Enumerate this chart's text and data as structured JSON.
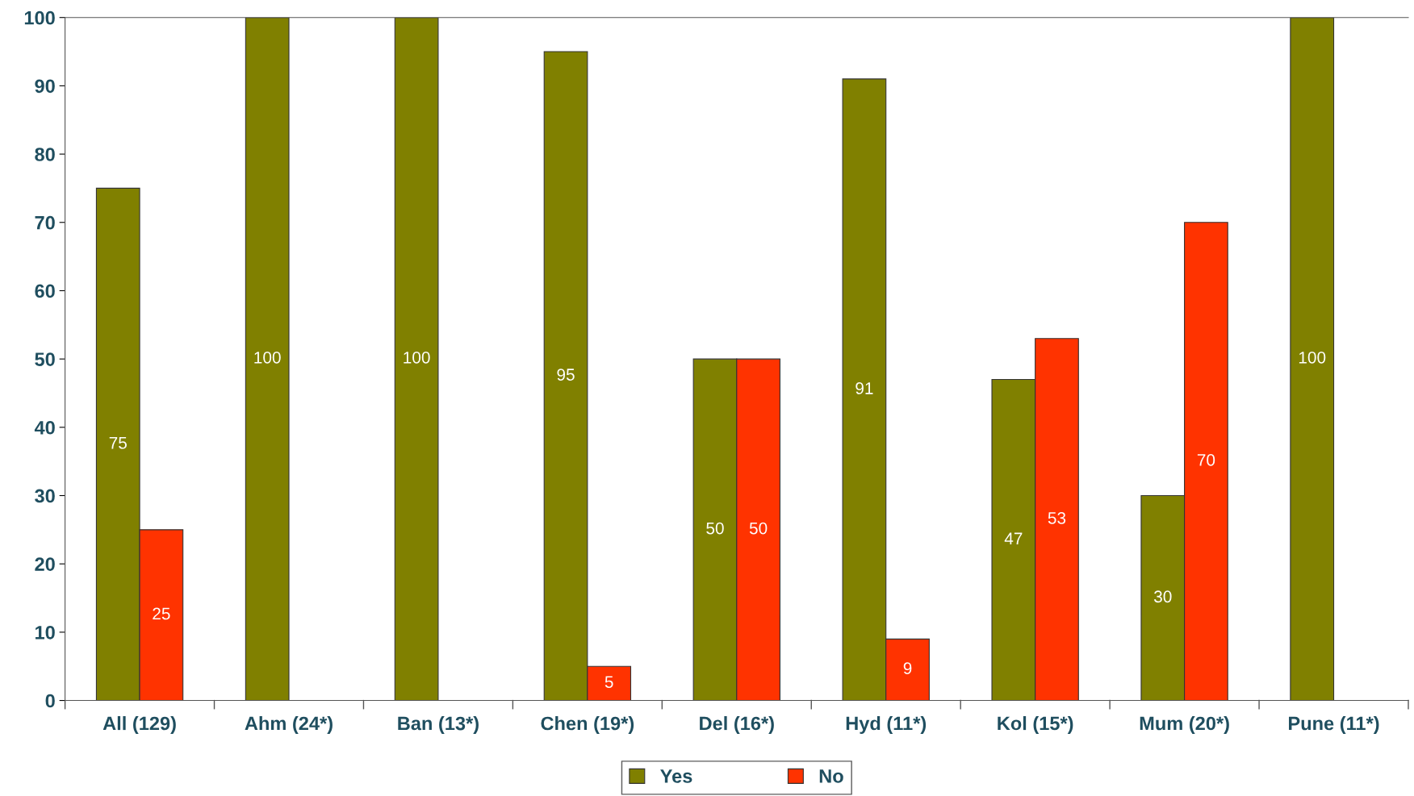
{
  "chart_data": {
    "type": "bar",
    "categories": [
      "All (129)",
      "Ahm (24*)",
      "Ban (13*)",
      "Chen (19*)",
      "Del (16*)",
      "Hyd (11*)",
      "Kol (15*)",
      "Mum (20*)",
      "Pune (11*)"
    ],
    "series": [
      {
        "name": "Yes",
        "color": "#808000",
        "values": [
          75,
          100,
          100,
          95,
          50,
          91,
          47,
          30,
          100
        ]
      },
      {
        "name": "No",
        "color": "#ff3300",
        "values": [
          25,
          null,
          null,
          5,
          50,
          9,
          53,
          70,
          null
        ]
      }
    ],
    "ylim": [
      0,
      100
    ],
    "yticks": [
      0,
      10,
      20,
      30,
      40,
      50,
      60,
      70,
      80,
      90,
      100
    ],
    "data_labels": true,
    "grid": false,
    "legend": "bottom"
  }
}
